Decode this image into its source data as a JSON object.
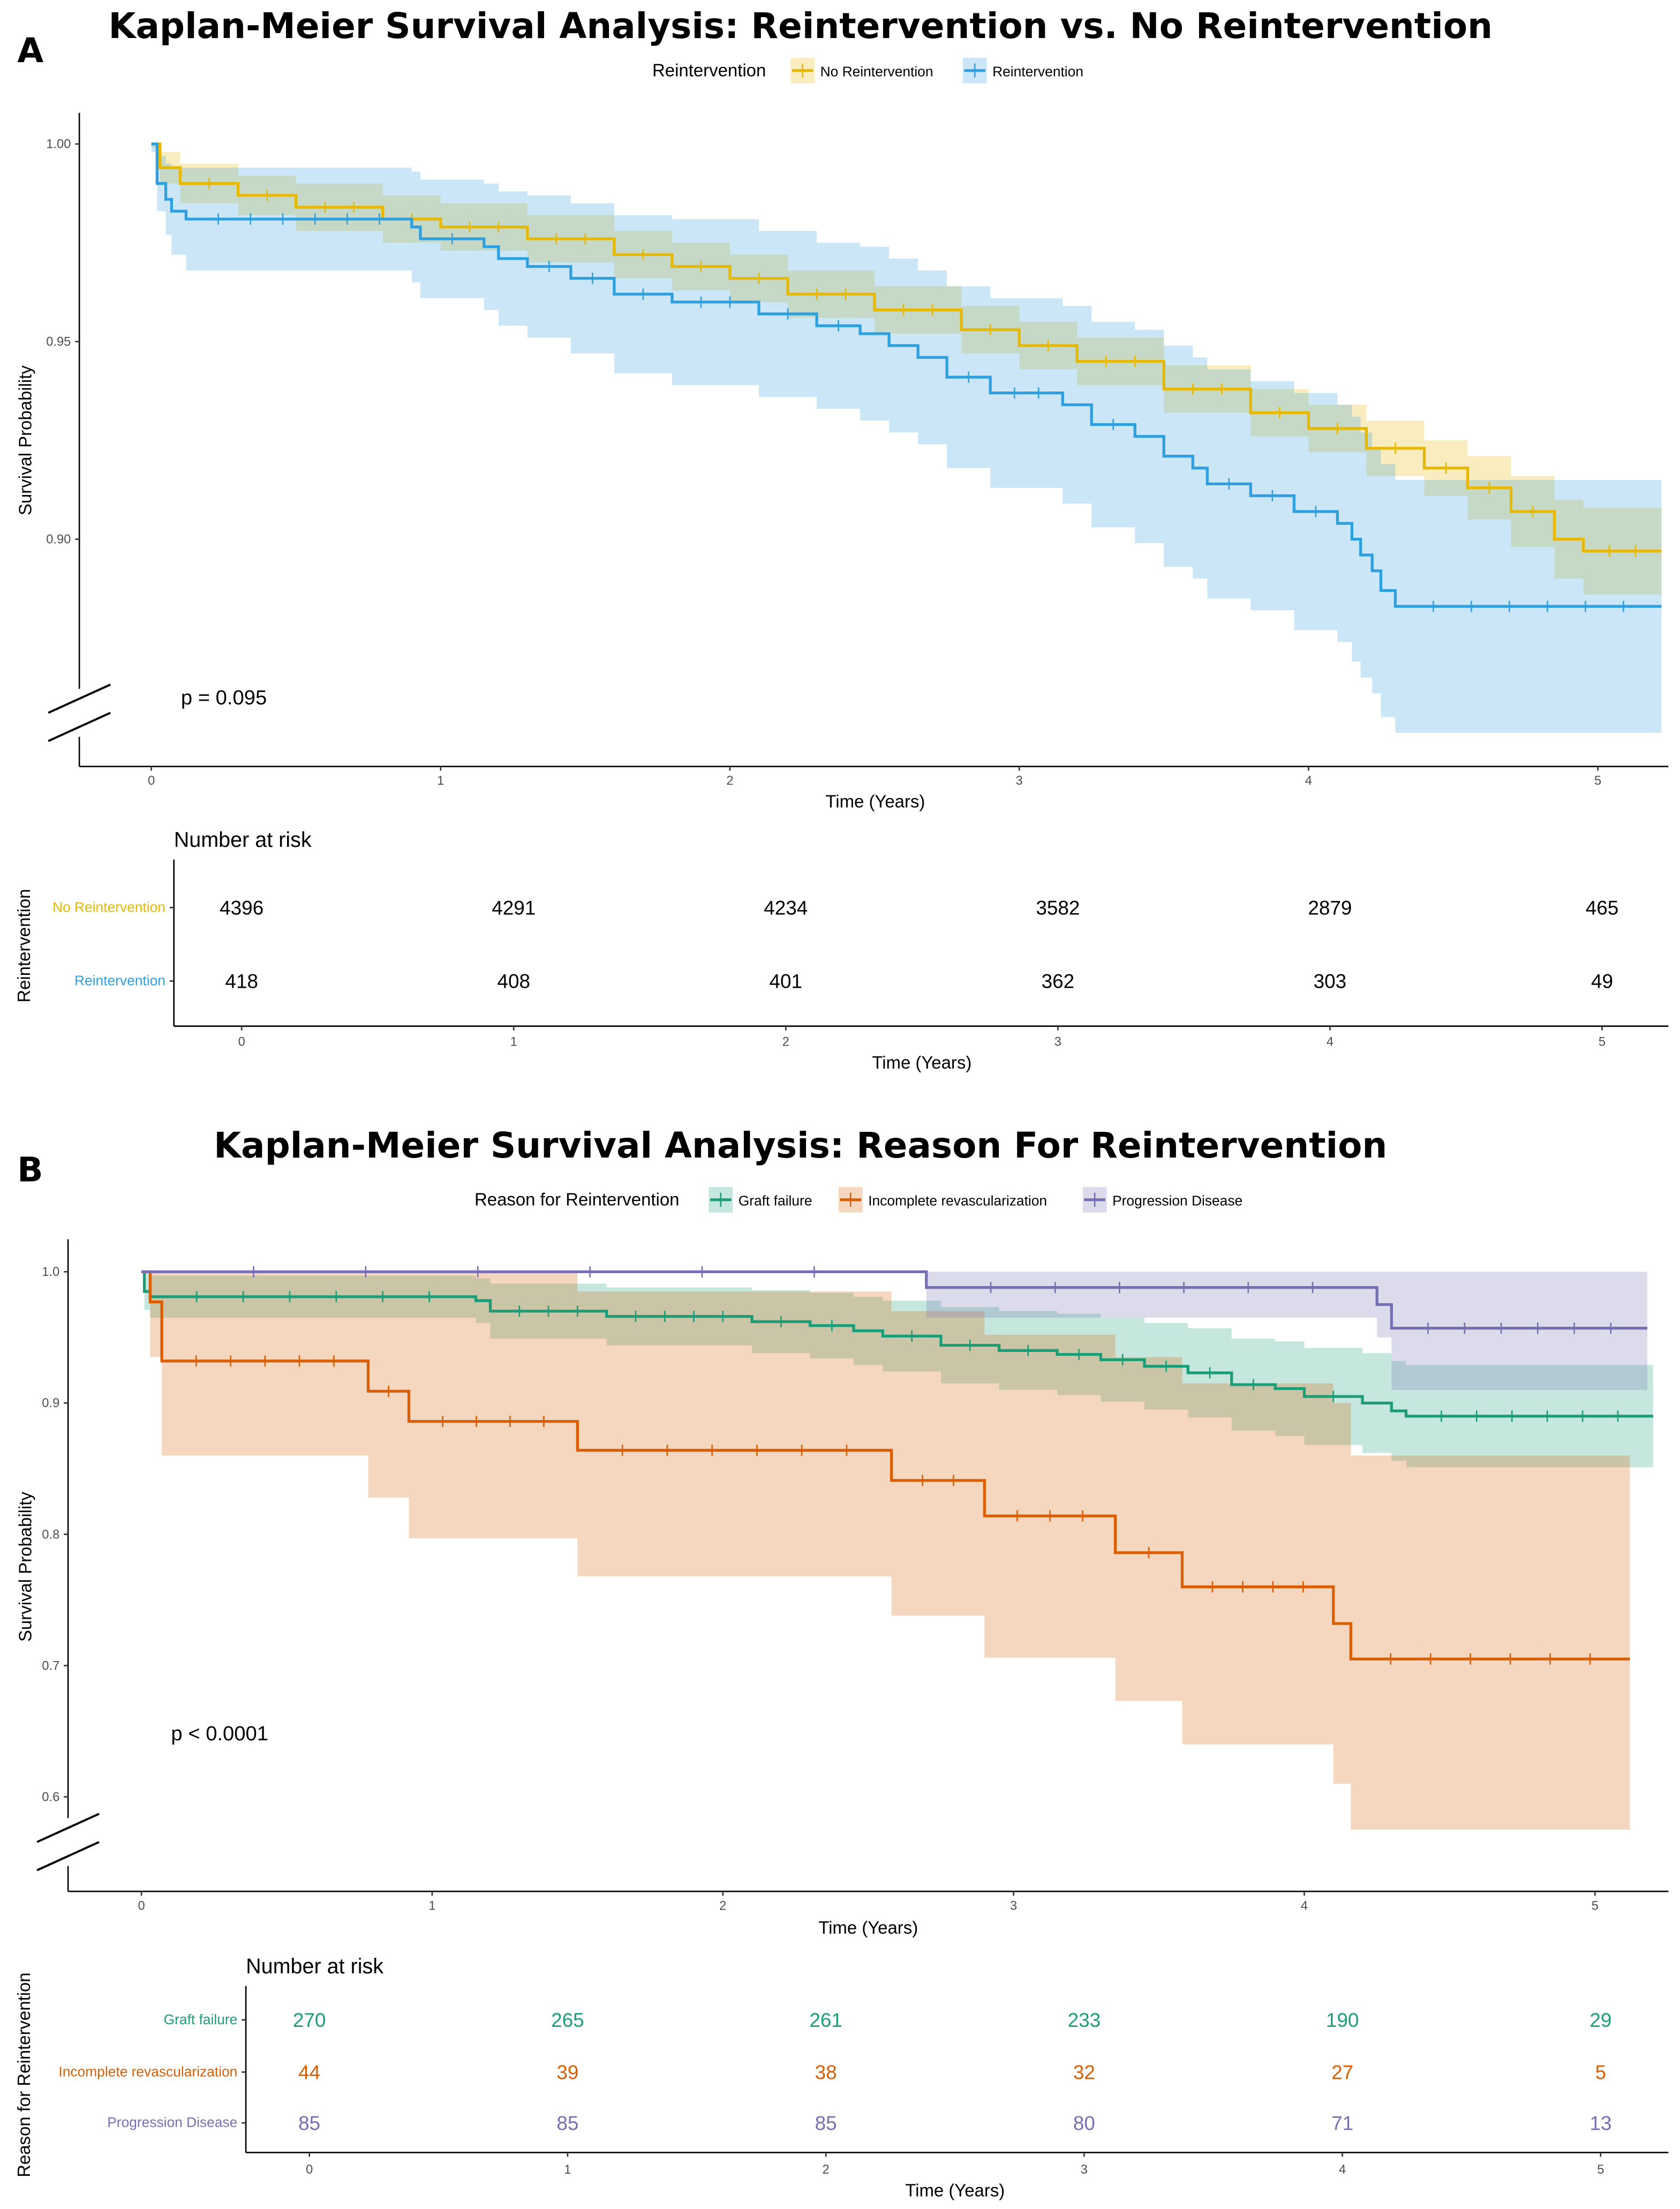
{
  "chart_data": [
    {
      "type": "line",
      "panel_label": "A",
      "title": "Kaplan-Meier Survival Analysis: Reintervention vs. No Reintervention",
      "xlabel": "Time (Years)",
      "ylabel": "Survival Probability",
      "xlim": [
        -0.25,
        5.25
      ],
      "ylim": [
        0.8425,
        1.008
      ],
      "xticks": [
        "0",
        "1",
        "2",
        "3",
        "4",
        "5"
      ],
      "yticks": [
        "1.00",
        "0.95",
        "0.90"
      ],
      "legend": {
        "title": "Reintervention",
        "placement": "top"
      },
      "annotation": "p = 0.095",
      "series": [
        {
          "name": "No Reintervention",
          "color": "#E7B800",
          "fill": "#F6E3A6",
          "points": [
            [
              0,
              1
            ],
            [
              0.03,
              0.994
            ],
            [
              0.1,
              0.99
            ],
            [
              0.3,
              0.987
            ],
            [
              0.5,
              0.984
            ],
            [
              0.8,
              0.981
            ],
            [
              1,
              0.979
            ],
            [
              1.3,
              0.976
            ],
            [
              1.6,
              0.972
            ],
            [
              1.8,
              0.969
            ],
            [
              2,
              0.966
            ],
            [
              2.2,
              0.962
            ],
            [
              2.5,
              0.958
            ],
            [
              2.8,
              0.953
            ],
            [
              3,
              0.949
            ],
            [
              3.2,
              0.945
            ],
            [
              3.5,
              0.938
            ],
            [
              3.8,
              0.932
            ],
            [
              4,
              0.928
            ],
            [
              4.2,
              0.923
            ],
            [
              4.4,
              0.918
            ],
            [
              4.55,
              0.913
            ],
            [
              4.7,
              0.907
            ],
            [
              4.85,
              0.9
            ],
            [
              4.95,
              0.897
            ],
            [
              5.22,
              0.897
            ]
          ],
          "ci_width": [
            0.001,
            0.004,
            0.005,
            0.005,
            0.006,
            0.006,
            0.006,
            0.006,
            0.006,
            0.006,
            0.006,
            0.006,
            0.006,
            0.006,
            0.006,
            0.006,
            0.006,
            0.006,
            0.006,
            0.007,
            0.007,
            0.008,
            0.009,
            0.01,
            0.011,
            0.012
          ]
        },
        {
          "name": "Reintervention",
          "color": "#2E9FDF",
          "fill": "#C6E1F2",
          "points": [
            [
              0,
              1
            ],
            [
              0.02,
              0.99
            ],
            [
              0.05,
              0.986
            ],
            [
              0.07,
              0.983
            ],
            [
              0.12,
              0.981
            ],
            [
              0.9,
              0.979
            ],
            [
              0.93,
              0.976
            ],
            [
              1.15,
              0.974
            ],
            [
              1.2,
              0.971
            ],
            [
              1.3,
              0.969
            ],
            [
              1.45,
              0.966
            ],
            [
              1.6,
              0.962
            ],
            [
              1.8,
              0.96
            ],
            [
              2.1,
              0.957
            ],
            [
              2.3,
              0.954
            ],
            [
              2.45,
              0.952
            ],
            [
              2.55,
              0.949
            ],
            [
              2.65,
              0.946
            ],
            [
              2.75,
              0.941
            ],
            [
              2.9,
              0.937
            ],
            [
              3.15,
              0.934
            ],
            [
              3.25,
              0.929
            ],
            [
              3.4,
              0.926
            ],
            [
              3.5,
              0.921
            ],
            [
              3.6,
              0.918
            ],
            [
              3.65,
              0.914
            ],
            [
              3.8,
              0.911
            ],
            [
              3.95,
              0.907
            ],
            [
              4.1,
              0.904
            ],
            [
              4.15,
              0.9
            ],
            [
              4.18,
              0.896
            ],
            [
              4.22,
              0.892
            ],
            [
              4.25,
              0.887
            ],
            [
              4.3,
              0.883
            ],
            [
              5.22,
              0.883
            ]
          ],
          "ci_width": [
            0.002,
            0.007,
            0.009,
            0.011,
            0.013,
            0.014,
            0.015,
            0.016,
            0.017,
            0.018,
            0.019,
            0.02,
            0.021,
            0.021,
            0.021,
            0.022,
            0.022,
            0.022,
            0.023,
            0.024,
            0.025,
            0.026,
            0.027,
            0.028,
            0.028,
            0.029,
            0.029,
            0.03,
            0.03,
            0.031,
            0.031,
            0.031,
            0.032,
            0.032,
            0.032
          ]
        }
      ],
      "risk_table": {
        "title": "Number at risk",
        "xlabel": "Time (Years)",
        "ylabel": "Reintervention",
        "times": [
          "0",
          "1",
          "2",
          "3",
          "4",
          "5"
        ],
        "rows": [
          {
            "name": "No Reintervention",
            "values": [
              "4396",
              "4291",
              "4234",
              "3582",
              "2879",
              "465"
            ]
          },
          {
            "name": "Reintervention",
            "values": [
              "418",
              "408",
              "401",
              "362",
              "303",
              "49"
            ]
          }
        ]
      }
    },
    {
      "type": "line",
      "panel_label": "B",
      "title": "Kaplan-Meier Survival Analysis: Reason For Reintervention",
      "xlabel": "Time (Years)",
      "ylabel": "Survival Probability",
      "xlim": [
        -0.25,
        5.25
      ],
      "ylim": [
        0.528,
        1.025
      ],
      "xticks": [
        "0",
        "1",
        "2",
        "3",
        "4",
        "5"
      ],
      "yticks": [
        "1.0",
        "0.9",
        "0.8",
        "0.7",
        "0.6"
      ],
      "legend": {
        "title": "Reason for Reintervention",
        "placement": "top"
      },
      "annotation": "p < 0.0001",
      "series": [
        {
          "name": "Graft failure",
          "color": "#1B9E77",
          "fill": "#C5E5D8",
          "points": [
            [
              0,
              1
            ],
            [
              0.01,
              0.985
            ],
            [
              0.03,
              0.981
            ],
            [
              1.15,
              0.978
            ],
            [
              1.2,
              0.97
            ],
            [
              1.6,
              0.966
            ],
            [
              2.1,
              0.962
            ],
            [
              2.3,
              0.959
            ],
            [
              2.45,
              0.955
            ],
            [
              2.55,
              0.951
            ],
            [
              2.75,
              0.944
            ],
            [
              2.95,
              0.94
            ],
            [
              3.15,
              0.937
            ],
            [
              3.3,
              0.933
            ],
            [
              3.45,
              0.928
            ],
            [
              3.6,
              0.923
            ],
            [
              3.75,
              0.914
            ],
            [
              3.9,
              0.911
            ],
            [
              4.0,
              0.905
            ],
            [
              4.2,
              0.9
            ],
            [
              4.3,
              0.894
            ],
            [
              4.35,
              0.89
            ],
            [
              5.2,
              0.89
            ]
          ],
          "ci_width": [
            0.001,
            0.014,
            0.016,
            0.017,
            0.021,
            0.022,
            0.024,
            0.025,
            0.026,
            0.027,
            0.029,
            0.03,
            0.031,
            0.032,
            0.033,
            0.034,
            0.035,
            0.036,
            0.037,
            0.038,
            0.038,
            0.039,
            0.039
          ]
        },
        {
          "name": "Incomplete revascularization",
          "color": "#D95F02",
          "fill": "#F2D2C2",
          "points": [
            [
              0,
              1
            ],
            [
              0.03,
              0.977
            ],
            [
              0.07,
              0.932
            ],
            [
              0.78,
              0.909
            ],
            [
              0.92,
              0.886
            ],
            [
              1.5,
              0.864
            ],
            [
              2.58,
              0.841
            ],
            [
              2.9,
              0.814
            ],
            [
              3.35,
              0.786
            ],
            [
              3.58,
              0.76
            ],
            [
              4.1,
              0.732
            ],
            [
              4.16,
              0.705
            ],
            [
              5.12,
              0.705
            ]
          ],
          "ci_lower": [
            1,
            0.935,
            0.86,
            0.828,
            0.797,
            0.768,
            0.738,
            0.706,
            0.673,
            0.64,
            0.61,
            0.575,
            0.575
          ],
          "ci_upper": [
            1,
            1,
            1,
            1,
            1,
            0.985,
            0.97,
            0.952,
            0.935,
            0.915,
            0.9,
            0.86,
            0.86
          ]
        },
        {
          "name": "Progression Disease",
          "color": "#7570B3",
          "fill": "#D6D5E8",
          "points": [
            [
              0,
              1
            ],
            [
              2.7,
              0.988
            ],
            [
              4.25,
              0.975
            ],
            [
              4.3,
              0.957
            ],
            [
              5.18,
              0.957
            ]
          ],
          "ci_lower": [
            1,
            0.965,
            0.95,
            0.91,
            0.91
          ],
          "ci_upper": [
            1,
            1,
            1,
            1,
            1
          ]
        }
      ],
      "risk_table": {
        "title": "Number at risk",
        "xlabel": "Time (Years)",
        "ylabel": "Reason for Reintervention",
        "times": [
          "0",
          "1",
          "2",
          "3",
          "4",
          "5"
        ],
        "rows": [
          {
            "name": "Graft failure",
            "values": [
              "270",
              "265",
              "261",
              "233",
              "190",
              "29"
            ]
          },
          {
            "name": "Incomplete revascularization",
            "values": [
              "44",
              "39",
              "38",
              "32",
              "27",
              "5"
            ]
          },
          {
            "name": "Progression Disease",
            "values": [
              "85",
              "85",
              "85",
              "80",
              "71",
              "13"
            ]
          }
        ]
      }
    }
  ]
}
